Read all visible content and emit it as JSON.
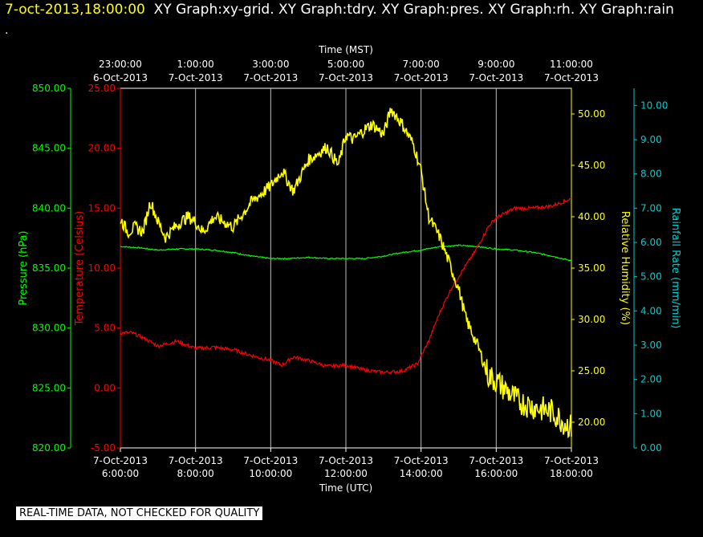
{
  "header": {
    "datetime": "7-oct-2013,18:00:00",
    "graphs": "XY Graph:xy-grid.  XY Graph:tdry.  XY Graph:pres.  XY Graph:rh.  XY Graph:rain"
  },
  "dot": ".",
  "footer": "REAL-TIME DATA, NOT CHECKED FOR QUALITY",
  "colors": {
    "pressure": "#00ff00",
    "temperature": "#ff0000",
    "humidity": "#ffff00",
    "rain": "#00cccc",
    "grid": "#ffffff"
  },
  "chart_data": {
    "type": "line",
    "grid": true,
    "xlabel_top": "Time (MST)",
    "xlabel_bottom": "Time (UTC)",
    "x_ticks_top": [
      {
        "time": "23:00:00",
        "date": "6-Oct-2013"
      },
      {
        "time": "1:00:00",
        "date": "7-Oct-2013"
      },
      {
        "time": "3:00:00",
        "date": "7-Oct-2013"
      },
      {
        "time": "5:00:00",
        "date": "7-Oct-2013"
      },
      {
        "time": "7:00:00",
        "date": "7-Oct-2013"
      },
      {
        "time": "9:00:00",
        "date": "7-Oct-2013"
      },
      {
        "time": "11:00:00",
        "date": "7-Oct-2013"
      }
    ],
    "x_ticks_bottom": [
      {
        "date": "7-Oct-2013",
        "time": "6:00:00"
      },
      {
        "date": "7-Oct-2013",
        "time": "8:00:00"
      },
      {
        "date": "7-Oct-2013",
        "time": "10:00:00"
      },
      {
        "date": "7-Oct-2013",
        "time": "12:00:00"
      },
      {
        "date": "7-Oct-2013",
        "time": "14:00:00"
      },
      {
        "date": "7-Oct-2013",
        "time": "16:00:00"
      },
      {
        "date": "7-Oct-2013",
        "time": "18:00:00"
      }
    ],
    "axes": {
      "pressure": {
        "label": "Pressure (hPa)",
        "ylim": [
          820,
          850
        ],
        "ticks": [
          "820.00",
          "825.00",
          "830.00",
          "835.00",
          "840.00",
          "845.00",
          "850.00"
        ]
      },
      "temperature": {
        "label": "Temperature (Celsius)",
        "ylim": [
          -5,
          25
        ],
        "ticks": [
          "-5.00",
          "0.00",
          "5.00",
          "10.00",
          "15.00",
          "20.00",
          "25.00"
        ]
      },
      "humidity": {
        "label": "Relative Humidity (%)",
        "ylim": [
          17.5,
          52.5
        ],
        "ticks": [
          "20.00",
          "25.00",
          "30.00",
          "35.00",
          "40.00",
          "45.00",
          "50.00"
        ]
      },
      "rain": {
        "label": "Rainfall Rate (mm/min)",
        "ylim": [
          0,
          10.5
        ],
        "ticks": [
          "0.00",
          "1.00",
          "2.00",
          "3.00",
          "4.00",
          "5.00",
          "6.00",
          "7.00",
          "8.00",
          "9.00",
          "10.00"
        ]
      }
    },
    "series": [
      {
        "axis": "pressure",
        "x": [
          6,
          6.5,
          7,
          7.5,
          8,
          8.5,
          9,
          9.5,
          10,
          10.5,
          11,
          11.5,
          12,
          12.5,
          13,
          13.5,
          14,
          14.5,
          15,
          15.5,
          16,
          16.5,
          17,
          17.5,
          18
        ],
        "values": [
          836.8,
          836.7,
          836.5,
          836.6,
          836.6,
          836.5,
          836.3,
          836.0,
          835.8,
          835.8,
          835.9,
          835.8,
          835.8,
          835.8,
          836.0,
          836.3,
          836.5,
          836.8,
          836.9,
          836.8,
          836.6,
          836.5,
          836.3,
          836.0,
          835.6
        ]
      },
      {
        "axis": "temperature",
        "x": [
          6,
          6.3,
          6.6,
          7,
          7.5,
          8,
          8.5,
          9,
          9.5,
          10,
          10.3,
          10.6,
          11,
          11.5,
          12,
          12.5,
          13,
          13.5,
          13.9,
          14.2,
          14.5,
          14.8,
          15.1,
          15.4,
          15.8,
          16,
          16.5,
          17,
          17.5,
          18
        ],
        "values": [
          4.6,
          4.6,
          4.2,
          3.5,
          3.9,
          3.3,
          3.4,
          3.2,
          2.7,
          2.3,
          1.9,
          2.6,
          2.3,
          1.8,
          1.9,
          1.5,
          1.3,
          1.4,
          2.0,
          3.9,
          6.3,
          8.3,
          9.8,
          11.2,
          13.5,
          14.2,
          15.0,
          15.0,
          15.2,
          15.8
        ]
      },
      {
        "axis": "humidity",
        "x": [
          6,
          6.2,
          6.4,
          6.6,
          6.8,
          7,
          7.2,
          7.4,
          7.6,
          7.8,
          8,
          8.2,
          8.5,
          9,
          9.5,
          10,
          10.3,
          10.6,
          11,
          11.5,
          11.8,
          12,
          12.2,
          12.5,
          12.7,
          13,
          13.2,
          13.5,
          13.8,
          14,
          14.2,
          14.5,
          14.7,
          15,
          15.2,
          15.5,
          15.8,
          16,
          16.3,
          16.6,
          17,
          17.5,
          17.8,
          18
        ],
        "values": [
          39.8,
          38.5,
          39.0,
          38.5,
          41.5,
          39.5,
          38.0,
          38.8,
          39.5,
          40.0,
          39.5,
          38.5,
          40.0,
          39.0,
          41.5,
          43.0,
          44.5,
          42.5,
          45.5,
          46.8,
          45.0,
          48.0,
          47.5,
          48.5,
          49.0,
          48.0,
          50.5,
          49.0,
          47.0,
          44.5,
          40.0,
          38.0,
          36.0,
          33.0,
          30.0,
          27.5,
          24.5,
          24.0,
          23.0,
          22.0,
          21.5,
          21.0,
          20.0,
          19.5
        ]
      },
      {
        "axis": "rain",
        "x": [
          6,
          18
        ],
        "values": [
          0,
          0
        ]
      }
    ]
  }
}
